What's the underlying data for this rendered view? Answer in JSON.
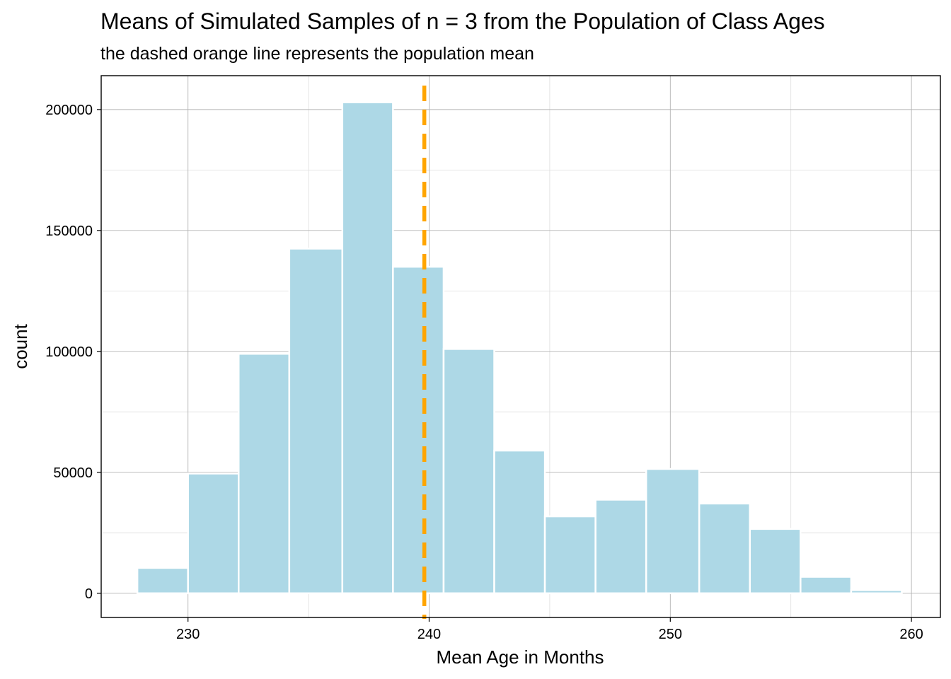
{
  "chart_data": {
    "type": "bar",
    "title": "Means of Simulated Samples of n = 3 from the Population of Class Ages",
    "subtitle": "the dashed orange line represents the population mean",
    "xlabel": "Mean Age in Months",
    "ylabel": "count",
    "xlim": [
      226.4,
      261.2
    ],
    "ylim": [
      -10000,
      214000
    ],
    "x_ticks": [
      230,
      240,
      250,
      260
    ],
    "y_ticks": [
      0,
      50000,
      100000,
      150000,
      200000
    ],
    "x_tick_labels": [
      "230",
      "240",
      "250",
      "260"
    ],
    "y_tick_labels": [
      "0",
      "50000",
      "100000",
      "150000",
      "200000"
    ],
    "bins": [
      {
        "x0": 227.9,
        "x1": 230.0,
        "count": 10500
      },
      {
        "x0": 230.0,
        "x1": 232.1,
        "count": 49500
      },
      {
        "x0": 232.1,
        "x1": 234.2,
        "count": 99000
      },
      {
        "x0": 234.2,
        "x1": 236.4,
        "count": 142500
      },
      {
        "x0": 236.4,
        "x1": 238.5,
        "count": 203000
      },
      {
        "x0": 238.5,
        "x1": 240.6,
        "count": 135000
      },
      {
        "x0": 240.6,
        "x1": 242.7,
        "count": 101000
      },
      {
        "x0": 242.7,
        "x1": 244.8,
        "count": 59000
      },
      {
        "x0": 244.8,
        "x1": 246.9,
        "count": 31800
      },
      {
        "x0": 246.9,
        "x1": 249.0,
        "count": 38700
      },
      {
        "x0": 249.0,
        "x1": 251.2,
        "count": 51400
      },
      {
        "x0": 251.2,
        "x1": 253.3,
        "count": 37100
      },
      {
        "x0": 253.3,
        "x1": 255.4,
        "count": 26600
      },
      {
        "x0": 255.4,
        "x1": 257.5,
        "count": 6800
      },
      {
        "x0": 257.5,
        "x1": 259.6,
        "count": 1300
      }
    ],
    "population_mean": 239.8,
    "grid": true,
    "colors": {
      "bar_fill": "#add8e6",
      "bar_outline": "#ffffff",
      "mean_line": "#ffa500",
      "grid_major": "#b3b3b3",
      "grid_minor": "#dedede",
      "panel_border": "#000000"
    }
  }
}
